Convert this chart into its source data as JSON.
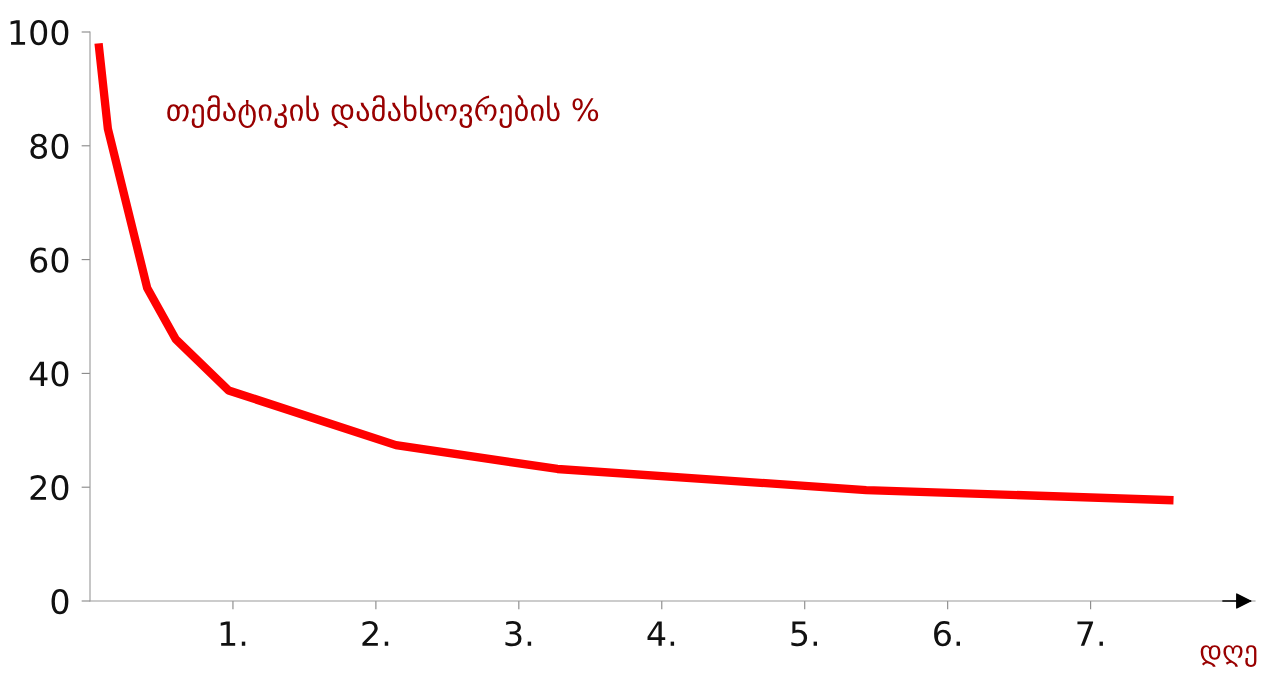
{
  "chart_data": {
    "type": "line",
    "ylabel": "თემატიკის დამახსოვრების %",
    "xlabel": "დღე",
    "x": [
      0.06,
      0.125,
      0.4,
      0.6,
      0.97,
      2.14,
      3.27,
      5.43,
      7.58
    ],
    "series": [
      {
        "color": "#ff0000",
        "values": [
          98,
          83,
          55,
          46,
          37,
          27.4,
          23.2,
          19.5,
          17.7
        ]
      }
    ],
    "xlim": [
      0,
      8.15
    ],
    "ylim": [
      0,
      100
    ],
    "xticks": [
      {
        "value": 1,
        "label": "1."
      },
      {
        "value": 2,
        "label": "2."
      },
      {
        "value": 3,
        "label": "3."
      },
      {
        "value": 4,
        "label": "4."
      },
      {
        "value": 5,
        "label": "5."
      },
      {
        "value": 6,
        "label": "6."
      },
      {
        "value": 7,
        "label": "7."
      }
    ],
    "yticks": [
      0,
      20,
      40,
      60,
      80,
      100
    ],
    "grid": false,
    "legend": false,
    "marker": "none",
    "line_style": "solid"
  }
}
